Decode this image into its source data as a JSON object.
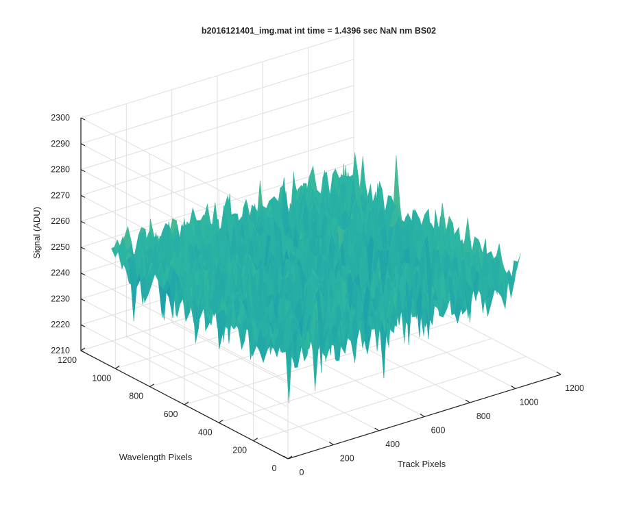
{
  "chart_data": {
    "type": "surface",
    "title": "b2016121401_img.mat int time = 1.4396 sec  NaN nm BS02",
    "xlabel": "Track Pixels",
    "ylabel": "Wavelength Pixels",
    "zlabel": "Signal (ADU)",
    "xlim": [
      0,
      1200
    ],
    "ylim": [
      0,
      1200
    ],
    "zlim": [
      2210,
      2300
    ],
    "x_ticks": [
      "0",
      "200",
      "400",
      "600",
      "800",
      "1000",
      "1200"
    ],
    "y_ticks": [
      "0",
      "200",
      "400",
      "600",
      "800",
      "1000",
      "1200"
    ],
    "z_ticks": [
      "2210",
      "2220",
      "2230",
      "2240",
      "2250",
      "2260",
      "2270",
      "2280",
      "2290",
      "2300"
    ],
    "grid": true,
    "colormap": "parula",
    "surface_summary": {
      "x_range": [
        0,
        1024
      ],
      "y_range": [
        0,
        1024
      ],
      "typical_z": 2252,
      "z_min": 2215,
      "z_max": 2295
    },
    "colors": {
      "low": "#0072bd",
      "mid": "#2cb7a2",
      "high": "#f2c230",
      "axis": "#262626",
      "grid": "#dedede"
    }
  }
}
